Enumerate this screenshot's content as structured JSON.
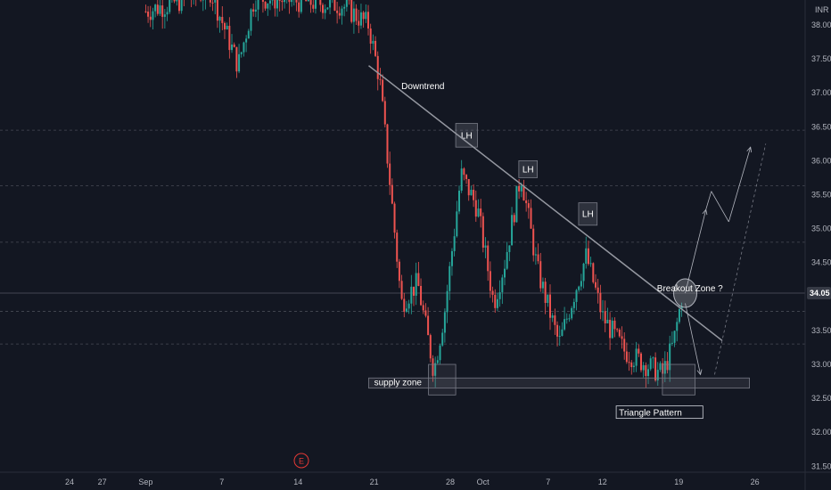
{
  "currency_label": "INR",
  "current_price_label": "34.05",
  "earnings_marker": "E",
  "colors": {
    "background": "#131722",
    "up": "#26a69a",
    "down": "#ef5350",
    "trendline": "#9598a1",
    "current_price": "#2a2e39",
    "axis_text": "#b2b5be"
  },
  "chart_data": {
    "type": "candlestick",
    "title": "",
    "xlabel": "",
    "ylabel": "",
    "ylim": [
      31.3,
      38.3
    ],
    "y_ticks": [
      31.5,
      32.0,
      32.5,
      33.0,
      33.5,
      34.0,
      34.5,
      35.0,
      35.5,
      36.0,
      36.5,
      37.0,
      37.5,
      38.0
    ],
    "y_tick_labels": [
      "31.50",
      "32.00",
      "32.50",
      "33.00",
      "33.50",
      "34.00",
      "34.50",
      "35.00",
      "35.50",
      "36.00",
      "36.50",
      "37.00",
      "37.50",
      "38.00"
    ],
    "x_ticks": [
      {
        "label": "24",
        "day": -8
      },
      {
        "label": "27",
        "day": -5
      },
      {
        "label": "Sep",
        "day": -1
      },
      {
        "label": "7",
        "day": 6
      },
      {
        "label": "14",
        "day": 13
      },
      {
        "label": "21",
        "day": 20
      },
      {
        "label": "28",
        "day": 27
      },
      {
        "label": "Oct",
        "day": 30
      },
      {
        "label": "7",
        "day": 36
      },
      {
        "label": "12",
        "day": 41
      },
      {
        "label": "19",
        "day": 48
      },
      {
        "label": "26",
        "day": 55
      }
    ],
    "candles_anchor": [
      {
        "day": -1,
        "v": 38.2
      },
      {
        "day": 5,
        "v": 38.5
      },
      {
        "day": 7.5,
        "v": 37.4
      },
      {
        "day": 9,
        "v": 38.4
      },
      {
        "day": 17,
        "v": 38.3
      },
      {
        "day": 19.5,
        "v": 38.0
      },
      {
        "day": 20.5,
        "v": 37.2
      },
      {
        "day": 21.5,
        "v": 35.6
      },
      {
        "day": 22.5,
        "v": 33.9
      },
      {
        "day": 24,
        "v": 34.2
      },
      {
        "day": 25.5,
        "v": 32.9
      },
      {
        "day": 26.5,
        "v": 33.8
      },
      {
        "day": 28,
        "v": 35.8
      },
      {
        "day": 29.5,
        "v": 35.3
      },
      {
        "day": 31,
        "v": 33.9
      },
      {
        "day": 32,
        "v": 34.5
      },
      {
        "day": 33.5,
        "v": 35.8
      },
      {
        "day": 35,
        "v": 34.4
      },
      {
        "day": 37,
        "v": 33.3
      },
      {
        "day": 38.5,
        "v": 34.1
      },
      {
        "day": 39.5,
        "v": 34.6
      },
      {
        "day": 41,
        "v": 33.7
      },
      {
        "day": 43,
        "v": 33.2
      },
      {
        "day": 45,
        "v": 33.0
      },
      {
        "day": 46.5,
        "v": 32.85
      },
      {
        "day": 47.5,
        "v": 33.3
      },
      {
        "day": 48.3,
        "v": 34.0
      }
    ],
    "horizontal_levels": [
      36.45,
      35.63,
      34.8,
      33.78,
      33.3
    ],
    "current_price": 34.05,
    "trendline": {
      "from": {
        "day": 19.5,
        "v": 37.4
      },
      "to": {
        "day": 52,
        "v": 33.35
      }
    },
    "supply_zone": {
      "day_from": 19.5,
      "day_to": 54.5,
      "v_low": 32.65,
      "v_high": 32.8
    },
    "lh_boxes": [
      {
        "day_from": 27.5,
        "day_to": 29.5,
        "v_low": 36.2,
        "v_high": 36.55,
        "label": "LH"
      },
      {
        "day_from": 33.3,
        "day_to": 35.0,
        "v_low": 35.75,
        "v_high": 36.0,
        "label": "LH"
      },
      {
        "day_from": 38.8,
        "day_to": 40.5,
        "v_low": 35.05,
        "v_high": 35.38,
        "label": "LH"
      }
    ],
    "bottom_boxes": [
      {
        "day_from": 25,
        "day_to": 27.5,
        "v_low": 32.55,
        "v_high": 33.0
      },
      {
        "day_from": 46.5,
        "day_to": 49.5,
        "v_low": 32.55,
        "v_high": 33.0
      }
    ],
    "breakout_circle": {
      "day": 48.6,
      "v": 34.05
    },
    "projection": [
      {
        "day": 48.6,
        "v": 34.05
      },
      {
        "day": 50.5,
        "v": 35.28
      },
      {
        "day": 51,
        "v": 35.55
      },
      {
        "day": 52.6,
        "v": 35.1
      },
      {
        "day": 54.6,
        "v": 36.2
      }
    ],
    "bear_arrow": {
      "from": {
        "day": 48.6,
        "v": 33.9
      },
      "to": {
        "day": 50,
        "v": 32.85
      }
    },
    "dashed_projection": {
      "from": {
        "day": 51.3,
        "v": 32.85
      },
      "to": {
        "day": 56,
        "v": 36.25
      }
    },
    "annotations": {
      "downtrend": {
        "text": "Downtrend",
        "day": 22.5,
        "v": 37.08
      },
      "lh_text": "LH",
      "breakout": {
        "text": "Breakout Zone ?",
        "day": 46,
        "v": 34.1
      },
      "supply_zone": {
        "text": "supply zone",
        "day": 20,
        "v": 32.72
      },
      "triangle": {
        "text": "Triangle Pattern",
        "day": 42.5,
        "v": 32.27
      }
    },
    "legend_position": "none",
    "grid": false
  }
}
